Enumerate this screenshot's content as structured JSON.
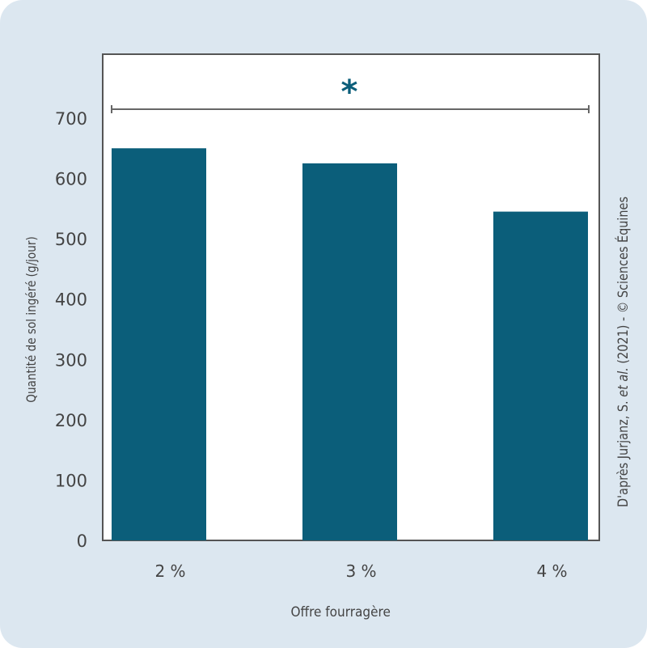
{
  "chart_data": {
    "type": "bar",
    "categories": [
      "2 %",
      "3 %",
      "4 %"
    ],
    "values": [
      650,
      625,
      545
    ],
    "xlabel": "Offre fourragère",
    "ylabel": "Quantité de sol ingéré (g/jour)",
    "ylim": [
      0,
      740
    ],
    "yticks": [
      0,
      100,
      200,
      300,
      400,
      500,
      600,
      700
    ],
    "grid": false,
    "bar_color": "#0b5e7a",
    "annotation": {
      "text": "*",
      "from": "2 %",
      "to": "4 %"
    },
    "source": {
      "prefix": "D'après Jurjanz, S. ",
      "italic": "et al.",
      "suffix": " (2021) - © Sciences Équines"
    }
  }
}
